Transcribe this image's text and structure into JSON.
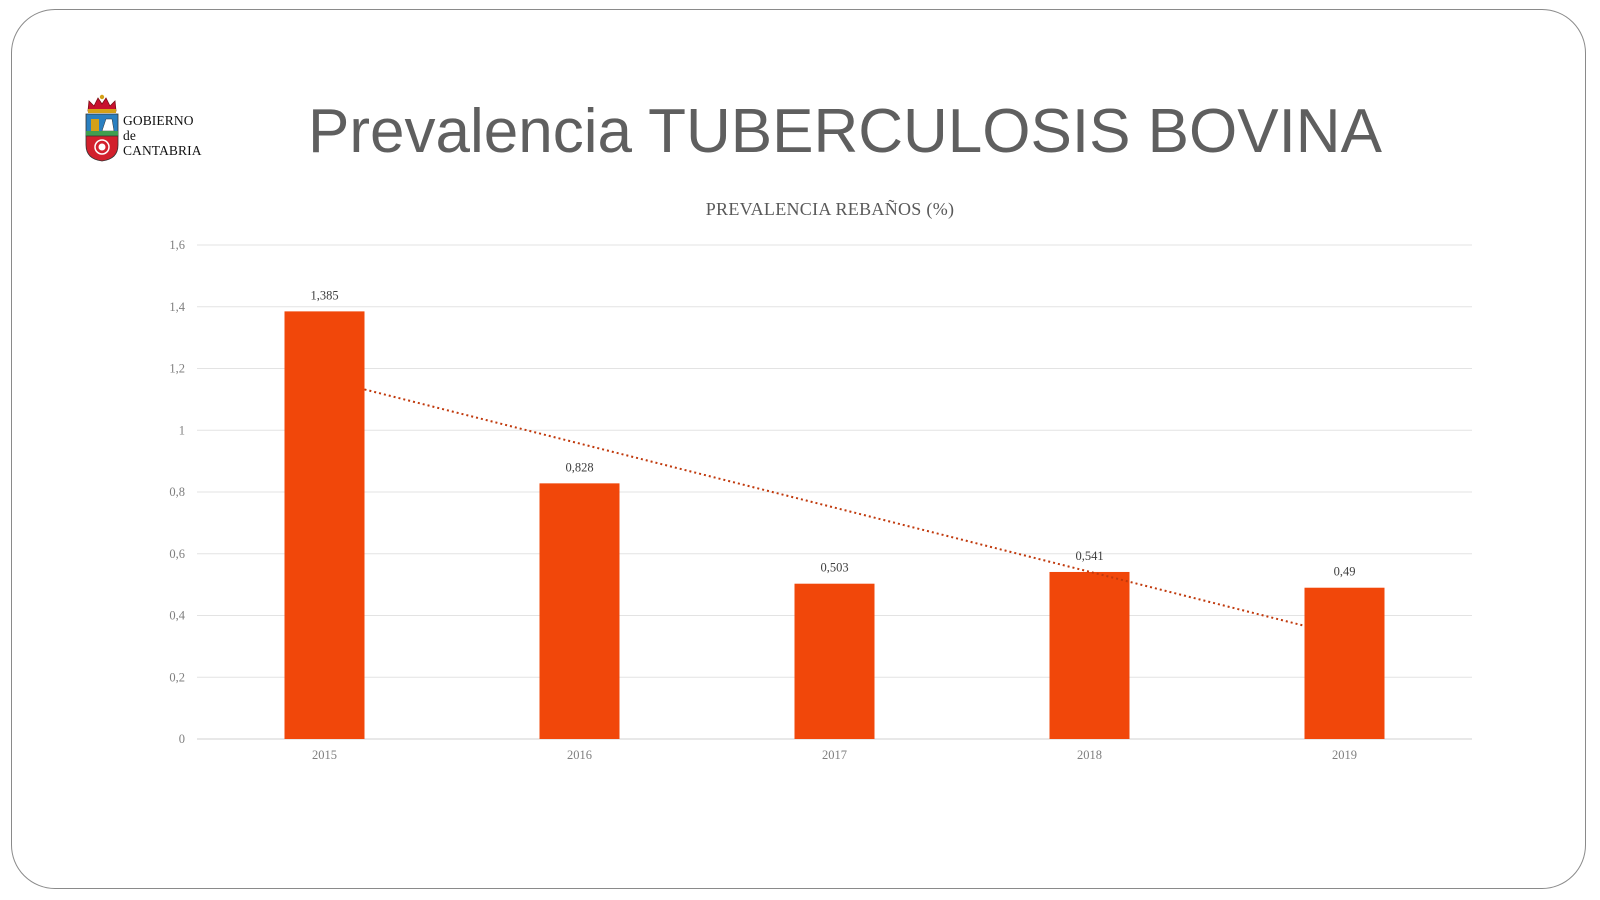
{
  "slide": {
    "title": "Prevalencia TUBERCULOSIS BOVINA"
  },
  "logo": {
    "line1": "GOBIERNO",
    "line2": "de",
    "line3": "CANTABRIA"
  },
  "colors": {
    "bar": "#f1470a",
    "trendline": "#c0390c",
    "gridline": "#e3e3e3",
    "axis_text": "#7f7f7f",
    "label_text": "#404040"
  },
  "chart_data": {
    "type": "bar",
    "title": "PREVALENCIA REBAÑOS (%)",
    "categories": [
      "2015",
      "2016",
      "2017",
      "2018",
      "2019"
    ],
    "values": [
      1.385,
      0.828,
      0.503,
      0.541,
      0.49
    ],
    "data_labels": [
      "1,385",
      "0,828",
      "0,503",
      "0,541",
      "0,49"
    ],
    "y_ticks": [
      0,
      0.2,
      0.4,
      0.6,
      0.8,
      1,
      1.2,
      1.4,
      1.6
    ],
    "y_tick_labels": [
      "0",
      "0,2",
      "0,4",
      "0,6",
      "0,8",
      "1",
      "1,2",
      "1,4",
      "1,6"
    ],
    "ylim": [
      0,
      1.6
    ],
    "xlabel": "",
    "ylabel": "",
    "grid": true,
    "legend": false,
    "trendline": {
      "type": "linear",
      "style": "dotted"
    }
  }
}
